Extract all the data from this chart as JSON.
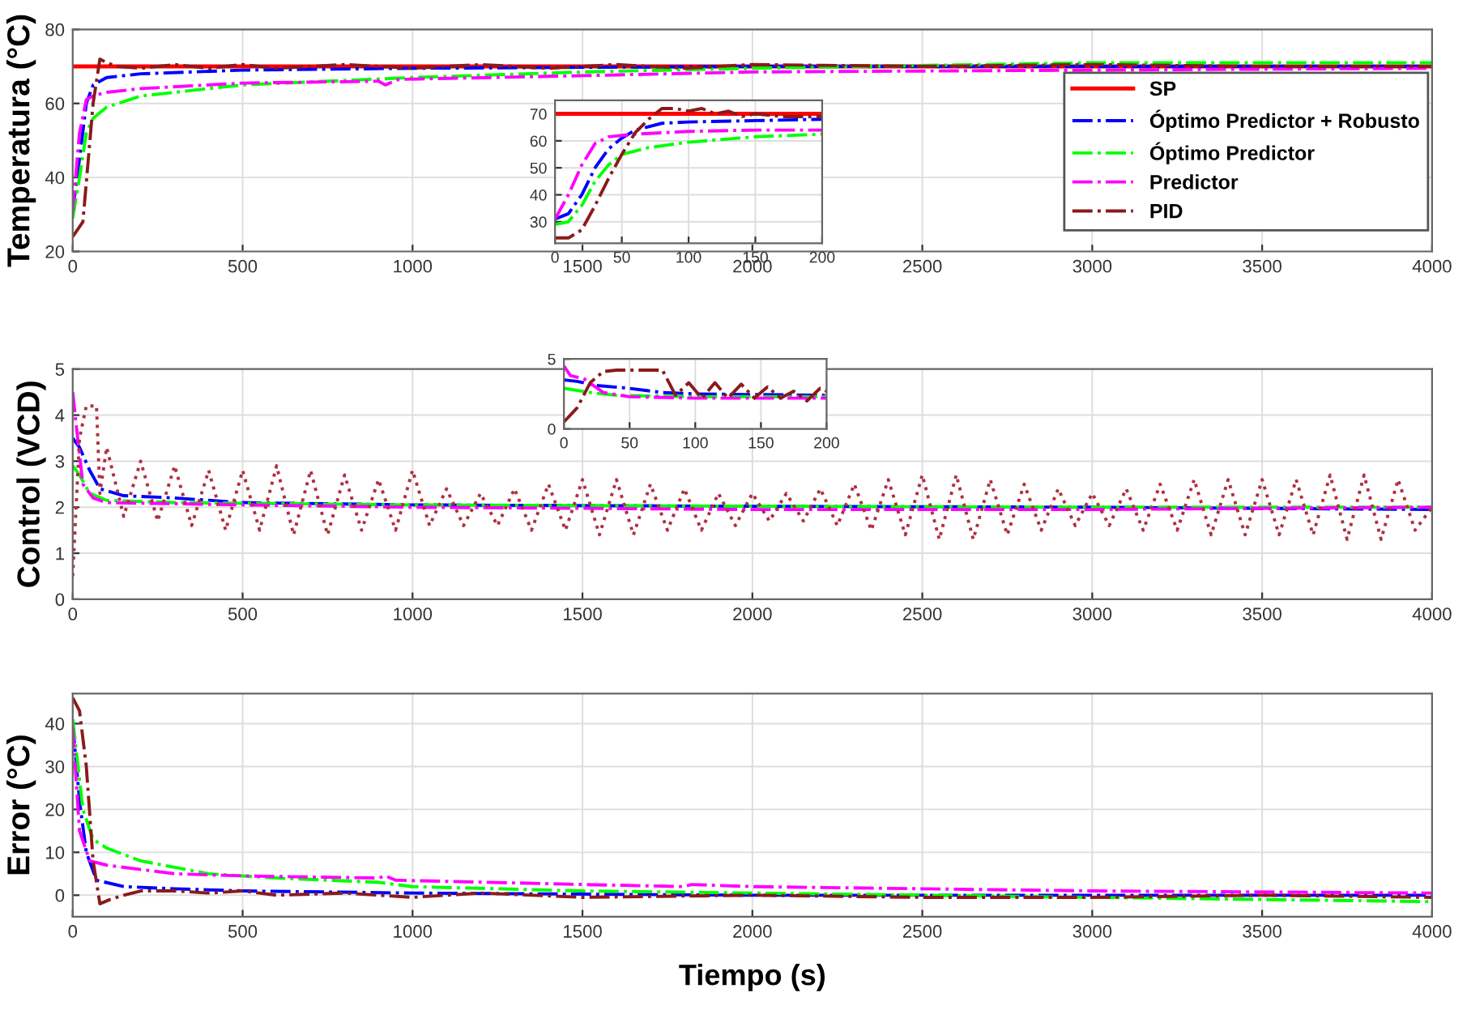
{
  "chart_data": [
    {
      "type": "line",
      "ylabel": "Temperatura (°C)",
      "xlim": [
        0,
        4000
      ],
      "xticks": [
        0,
        500,
        1000,
        1500,
        2000,
        2500,
        3000,
        3500,
        4000
      ],
      "ylim": [
        20,
        80
      ],
      "yticks": [
        20,
        40,
        60,
        80
      ],
      "grid": true,
      "legend": "right",
      "series": [
        {
          "name": "SP",
          "color": "#ff0000",
          "line_style": "solid",
          "x": [
            0,
            4000
          ],
          "values": [
            70,
            70
          ]
        },
        {
          "name": "Óptimo Predictor + Robusto",
          "color": "#0000ff",
          "line_style": "dashdot",
          "x": [
            0,
            20,
            40,
            60,
            100,
            200,
            500,
            1000,
            2000,
            3000,
            4000
          ],
          "values": [
            31,
            45,
            60,
            65,
            67,
            68,
            69,
            69.5,
            70,
            70,
            70
          ]
        },
        {
          "name": "Óptimo Predictor",
          "color": "#00ff00",
          "line_style": "dashdot",
          "x": [
            0,
            20,
            40,
            60,
            100,
            200,
            500,
            1000,
            1500,
            2000,
            3000,
            4000
          ],
          "values": [
            29,
            40,
            52,
            56,
            59,
            62,
            65,
            67,
            68.5,
            69.5,
            71,
            71
          ]
        },
        {
          "name": "Predictor",
          "color": "#ff00ff",
          "line_style": "dashdot",
          "x": [
            0,
            20,
            40,
            60,
            100,
            200,
            500,
            900,
            920,
            960,
            1500,
            2000,
            3000,
            4000
          ],
          "values": [
            31,
            52,
            61,
            62,
            63,
            64,
            65.5,
            66,
            65,
            66.5,
            67.5,
            68.5,
            69,
            69.5
          ]
        },
        {
          "name": "PID",
          "color": "#8b1a1a",
          "line_style": "dashdot",
          "x": [
            0,
            30,
            60,
            80,
            100,
            130,
            200,
            300,
            400,
            500,
            600,
            800,
            1000,
            1200,
            1400,
            1600,
            1800,
            2000,
            2500,
            3000,
            3500,
            4000
          ],
          "values": [
            24,
            28,
            60,
            72,
            71,
            70,
            69.5,
            70.5,
            69.5,
            70.5,
            69.5,
            70.5,
            69.5,
            70.5,
            69.5,
            70.5,
            69.5,
            70.5,
            70,
            70.5,
            70,
            70
          ]
        }
      ]
    },
    {
      "type": "line",
      "xlim": [
        0,
        200
      ],
      "xticks": [
        0,
        50,
        100,
        150,
        200
      ],
      "ylim": [
        22,
        75
      ],
      "yticks": [
        30,
        40,
        50,
        60,
        70
      ],
      "grid": true,
      "series": [
        {
          "color": "#ff0000",
          "line_style": "solid",
          "x": [
            0,
            200
          ],
          "values": [
            70,
            70
          ]
        },
        {
          "color": "#0000ff",
          "line_style": "dashdot",
          "x": [
            0,
            10,
            20,
            30,
            40,
            50,
            60,
            80,
            100,
            150,
            200
          ],
          "values": [
            31,
            33,
            40,
            50,
            57,
            61,
            64,
            66.5,
            67,
            67.5,
            68
          ]
        },
        {
          "color": "#00ff00",
          "line_style": "dashdot",
          "x": [
            0,
            10,
            20,
            30,
            40,
            50,
            70,
            100,
            150,
            200
          ],
          "values": [
            29,
            30,
            36,
            45,
            51,
            55,
            57.5,
            59.5,
            61.5,
            62.5
          ]
        },
        {
          "color": "#ff00ff",
          "line_style": "dashdot",
          "x": [
            0,
            10,
            20,
            30,
            40,
            60,
            100,
            150,
            200
          ],
          "values": [
            31,
            40,
            51,
            59,
            61.5,
            62.5,
            63.5,
            64,
            64
          ]
        },
        {
          "color": "#8b1a1a",
          "line_style": "dashdot",
          "x": [
            0,
            10,
            20,
            30,
            40,
            50,
            60,
            70,
            80,
            90,
            100,
            110,
            120,
            130,
            140,
            150,
            170,
            200
          ],
          "values": [
            24,
            24,
            27,
            36,
            46,
            55,
            63,
            68,
            72,
            72,
            71,
            72,
            70,
            71,
            69,
            70,
            69,
            69
          ]
        }
      ]
    },
    {
      "type": "line",
      "ylabel": "Control (VCD)",
      "xlim": [
        0,
        4000
      ],
      "xticks": [
        0,
        500,
        1000,
        1500,
        2000,
        2500,
        3000,
        3500,
        4000
      ],
      "ylim": [
        0,
        5
      ],
      "yticks": [
        0,
        1,
        2,
        3,
        4,
        5
      ],
      "grid": true,
      "series": [
        {
          "color": "#0000ff",
          "line_style": "dashdot",
          "x": [
            0,
            20,
            50,
            80,
            150,
            300,
            500,
            1000,
            2000,
            3000,
            4000
          ],
          "values": [
            3.5,
            3.3,
            2.8,
            2.4,
            2.25,
            2.2,
            2.1,
            2.05,
            2.02,
            2.0,
            1.95
          ]
        },
        {
          "color": "#00ff00",
          "line_style": "dashdot",
          "x": [
            0,
            20,
            50,
            100,
            300,
            1000,
            2000,
            3000,
            4000
          ],
          "values": [
            2.9,
            2.7,
            2.3,
            2.15,
            2.1,
            2.05,
            2.02,
            2.0,
            2.0
          ]
        },
        {
          "color": "#ff00ff",
          "line_style": "dashdot",
          "x": [
            0,
            10,
            30,
            60,
            100,
            500,
            1000,
            2000,
            3000,
            4000
          ],
          "values": [
            4.5,
            3.8,
            2.5,
            2.2,
            2.1,
            2.05,
            2.0,
            1.95,
            1.95,
            2.0
          ]
        },
        {
          "color": "#b03040",
          "line_style": "dotted",
          "x": [
            0,
            20,
            40,
            70,
            80,
            100,
            150,
            200,
            250,
            300,
            350,
            400,
            450,
            500,
            550,
            600,
            650,
            700,
            750,
            800,
            850,
            900,
            950,
            1000,
            1050,
            1100,
            1150,
            1200,
            1250,
            1300,
            1350,
            1400,
            1450,
            1500,
            1550,
            1600,
            1650,
            1700,
            1750,
            1800,
            1850,
            1900,
            1950,
            2000,
            2050,
            2100,
            2150,
            2200,
            2250,
            2300,
            2350,
            2400,
            2450,
            2500,
            2550,
            2600,
            2650,
            2700,
            2750,
            2800,
            2850,
            2900,
            2950,
            3000,
            3050,
            3100,
            3150,
            3200,
            3250,
            3300,
            3350,
            3400,
            3450,
            3500,
            3550,
            3600,
            3650,
            3700,
            3750,
            3800,
            3850,
            3900,
            3950,
            4000
          ],
          "values": [
            0.5,
            3.5,
            4.2,
            4.2,
            2.3,
            3.3,
            1.8,
            3.0,
            1.7,
            2.9,
            1.6,
            2.8,
            1.5,
            2.8,
            1.5,
            2.9,
            1.4,
            2.8,
            1.4,
            2.7,
            1.5,
            2.6,
            1.5,
            2.8,
            1.6,
            2.4,
            1.6,
            2.3,
            1.6,
            2.4,
            1.5,
            2.5,
            1.5,
            2.6,
            1.4,
            2.6,
            1.4,
            2.5,
            1.5,
            2.4,
            1.5,
            2.3,
            1.6,
            2.3,
            1.7,
            2.3,
            1.7,
            2.4,
            1.6,
            2.5,
            1.5,
            2.6,
            1.4,
            2.7,
            1.3,
            2.7,
            1.3,
            2.6,
            1.4,
            2.5,
            1.5,
            2.4,
            1.6,
            2.3,
            1.6,
            2.4,
            1.5,
            2.5,
            1.5,
            2.6,
            1.4,
            2.6,
            1.4,
            2.6,
            1.4,
            2.6,
            1.4,
            2.7,
            1.3,
            2.7,
            1.3,
            2.6,
            1.5,
            2.0
          ]
        }
      ]
    },
    {
      "type": "line",
      "xlim": [
        0,
        200
      ],
      "xticks": [
        0,
        50,
        100,
        150,
        200
      ],
      "ylim": [
        0,
        5
      ],
      "yticks": [
        0,
        5
      ],
      "grid": true,
      "series": [
        {
          "color": "#0000ff",
          "line_style": "dashdot",
          "x": [
            0,
            10,
            25,
            50,
            75,
            100,
            200
          ],
          "values": [
            3.5,
            3.4,
            3.1,
            2.9,
            2.6,
            2.5,
            2.4
          ]
        },
        {
          "color": "#00ff00",
          "line_style": "dashdot",
          "x": [
            0,
            20,
            40,
            100,
            200
          ],
          "values": [
            2.9,
            2.6,
            2.4,
            2.3,
            2.3
          ]
        },
        {
          "color": "#ff00ff",
          "line_style": "dashdot",
          "x": [
            0,
            5,
            15,
            30,
            50,
            100,
            200
          ],
          "values": [
            4.5,
            3.8,
            3.6,
            2.6,
            2.3,
            2.2,
            2.2
          ]
        },
        {
          "color": "#8b1a1a",
          "line_style": "dashdot",
          "x": [
            0,
            10,
            20,
            30,
            40,
            75,
            85,
            95,
            105,
            115,
            125,
            135,
            145,
            155,
            165,
            175,
            185,
            195,
            200
          ],
          "values": [
            0.5,
            1.5,
            3.3,
            4.1,
            4.2,
            4.2,
            2.4,
            3.3,
            2.2,
            3.3,
            2.2,
            3.2,
            2.2,
            3.0,
            2.2,
            2.7,
            2.0,
            2.9,
            2.7
          ]
        }
      ]
    },
    {
      "type": "line",
      "ylabel": "Error (°C)",
      "xlabel": "Tiempo (s)",
      "xlim": [
        0,
        4000
      ],
      "xticks": [
        0,
        500,
        1000,
        1500,
        2000,
        2500,
        3000,
        3500,
        4000
      ],
      "ylim": [
        -5,
        47
      ],
      "yticks": [
        0,
        10,
        20,
        30,
        40
      ],
      "grid": true,
      "series": [
        {
          "color": "#0000ff",
          "line_style": "dashdot",
          "x": [
            0,
            20,
            40,
            70,
            150,
            300,
            500,
            1000,
            2000,
            3000,
            4000
          ],
          "values": [
            40,
            22,
            10,
            3.5,
            2,
            1.5,
            1,
            0.5,
            0,
            0,
            0
          ]
        },
        {
          "color": "#00ff00",
          "line_style": "dashdot",
          "x": [
            0,
            30,
            60,
            100,
            200,
            400,
            600,
            900,
            1000,
            1500,
            2000,
            3000,
            3500,
            4000
          ],
          "values": [
            41,
            20,
            13,
            11,
            8,
            5,
            4,
            3,
            2,
            1,
            0.5,
            -0.5,
            -1,
            -1.5
          ]
        },
        {
          "color": "#ff00ff",
          "line_style": "dashdot",
          "x": [
            0,
            20,
            50,
            100,
            300,
            500,
            900,
            920,
            950,
            1500,
            1800,
            1820,
            2000,
            3000,
            4000
          ],
          "values": [
            39,
            15,
            8,
            7,
            5,
            4.5,
            4,
            4.5,
            3.5,
            2.5,
            2,
            2.5,
            2,
            1,
            0.5
          ]
        },
        {
          "color": "#8b1a1a",
          "line_style": "dashdot",
          "x": [
            0,
            20,
            40,
            60,
            80,
            110,
            150,
            200,
            300,
            400,
            500,
            600,
            800,
            1000,
            1200,
            1500,
            2000,
            2500,
            3000,
            3500,
            4000
          ],
          "values": [
            46,
            43,
            30,
            8,
            -2,
            -1,
            0,
            1,
            1,
            0.5,
            1,
            0,
            0.5,
            -0.5,
            0.5,
            -0.5,
            0,
            -0.5,
            -0.5,
            0,
            -0.5
          ]
        }
      ]
    }
  ]
}
